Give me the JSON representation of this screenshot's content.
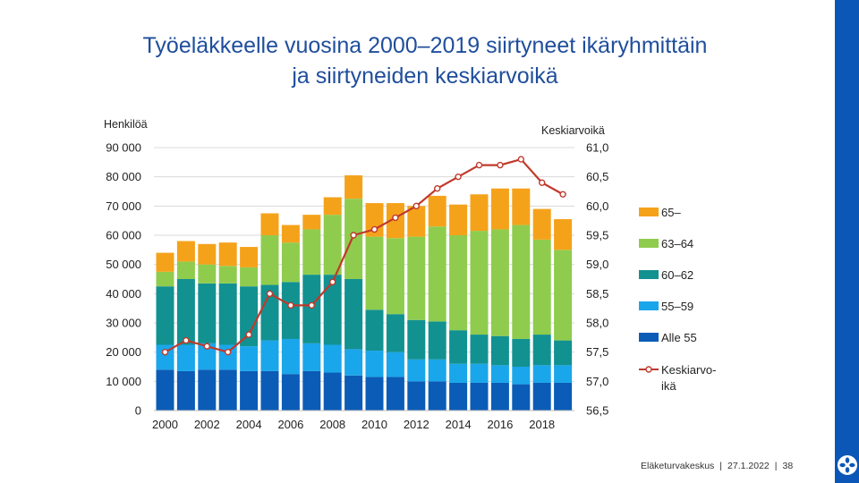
{
  "slide": {
    "title_line1": "Työeläkkeelle vuosina 2000–2019 siirtyneet ikäryhmittäin",
    "title_line2": "ja siirtyneiden keskiarvoikä"
  },
  "footer": {
    "org": "Eläketurvakeskus",
    "date": "27.1.2022",
    "page": "38"
  },
  "colors": {
    "title": "#1f4e9c",
    "side_bar": "#0a57b7",
    "grid": "#d9d9d9",
    "line": "#c0392b"
  },
  "chart_data": {
    "type": "bar",
    "stacked": true,
    "left_axis_label": "Henkilöä",
    "right_axis_label": "Keskiarvoikä",
    "years": [
      2000,
      2001,
      2002,
      2003,
      2004,
      2005,
      2006,
      2007,
      2008,
      2009,
      2010,
      2011,
      2012,
      2013,
      2014,
      2015,
      2016,
      2017,
      2018,
      2019
    ],
    "x_tick_labels": [
      "2000",
      "2002",
      "2004",
      "2006",
      "2008",
      "2010",
      "2012",
      "2014",
      "2016",
      "2018"
    ],
    "left_ticks": [
      "0",
      "10 000",
      "20 000",
      "30 000",
      "40 000",
      "50 000",
      "60 000",
      "70 000",
      "80 000",
      "90 000"
    ],
    "right_ticks": [
      "56,5",
      "57,0",
      "57,5",
      "58,0",
      "58,5",
      "59,0",
      "59,5",
      "60,0",
      "60,5",
      "61,0"
    ],
    "ylim": [
      0,
      90000
    ],
    "y2lim": [
      56.5,
      61.0
    ],
    "series": [
      {
        "name": "Alle 55",
        "color": "#0b5cb6",
        "values": [
          14000,
          13500,
          14000,
          14000,
          13500,
          13500,
          12500,
          13500,
          13000,
          12000,
          11500,
          11500,
          10000,
          10000,
          9500,
          9500,
          9500,
          9000,
          9500,
          9500
        ]
      },
      {
        "name": "55–59",
        "color": "#1aa6ea",
        "values": [
          8500,
          9000,
          9000,
          8500,
          8500,
          10500,
          12000,
          9500,
          9500,
          9000,
          9000,
          8500,
          7500,
          7500,
          6500,
          6500,
          6000,
          6000,
          6000,
          6000
        ]
      },
      {
        "name": "60–62",
        "color": "#129191",
        "values": [
          20000,
          22500,
          20500,
          21000,
          20500,
          19000,
          19500,
          23500,
          24000,
          24000,
          14000,
          13000,
          13500,
          13000,
          11500,
          10000,
          10000,
          9500,
          10500,
          8500
        ]
      },
      {
        "name": "63–64",
        "color": "#8fcc4e",
        "values": [
          5000,
          6000,
          6500,
          6000,
          6500,
          17000,
          13500,
          15500,
          20500,
          27500,
          25000,
          26000,
          28500,
          32500,
          32500,
          35500,
          36500,
          39000,
          32500,
          31000
        ]
      },
      {
        "name": "65–",
        "color": "#f5a21b",
        "values": [
          6500,
          7000,
          7000,
          8000,
          7000,
          7500,
          6000,
          5000,
          6000,
          8000,
          11500,
          12000,
          10500,
          10500,
          10500,
          12500,
          14000,
          12500,
          10500,
          10500
        ]
      }
    ],
    "line_series": {
      "name": "Keskiarvo-ikä",
      "legend_line1": "Keskiarvo-",
      "legend_line2": "ikä",
      "color": "#c0392b",
      "axis": "right",
      "values": [
        57.5,
        57.7,
        57.6,
        57.5,
        57.8,
        58.5,
        58.3,
        58.3,
        58.7,
        59.5,
        59.6,
        59.8,
        60.0,
        60.3,
        60.5,
        60.7,
        60.7,
        60.8,
        60.4,
        60.2
      ]
    },
    "legend_order": [
      "65–",
      "63–64",
      "60–62",
      "55–59",
      "Alle 55",
      "Keskiarvo-ikä"
    ],
    "legend_position": "right"
  }
}
